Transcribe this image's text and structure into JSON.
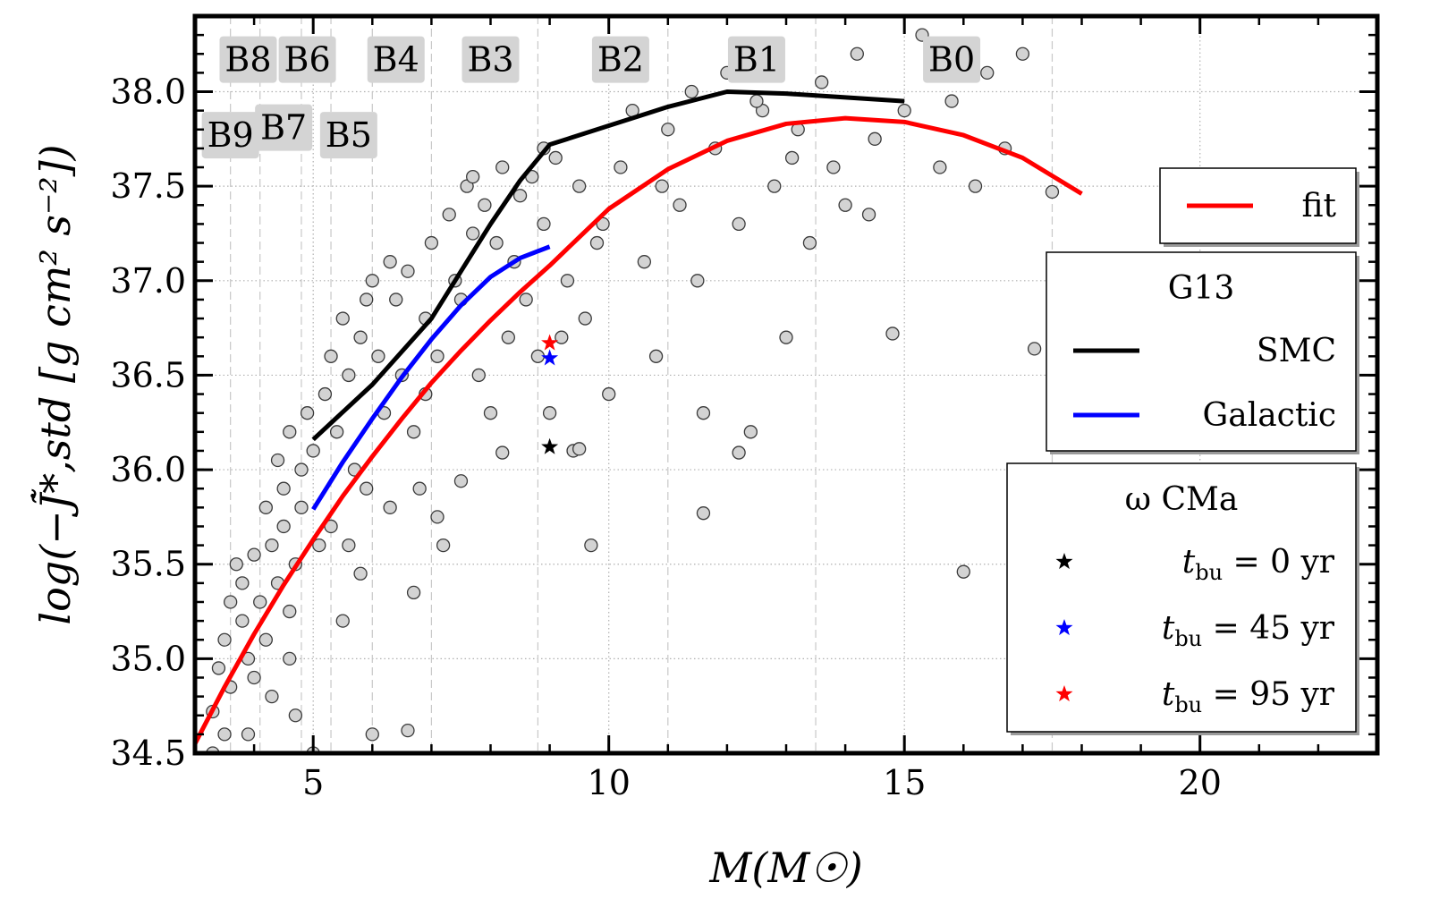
{
  "chart_data": {
    "type": "scatter",
    "title": "",
    "xlabel": "M(M☉)",
    "ylabel": "log(−J̃̇*,std [g cm² s⁻²])",
    "xlim": [
      3.0,
      23.0
    ],
    "ylim": [
      34.5,
      38.4
    ],
    "xticks": [
      5,
      10,
      15,
      20
    ],
    "xtick_labels": [
      "5",
      "10",
      "15",
      "20"
    ],
    "yticks": [
      34.5,
      35.0,
      35.5,
      36.0,
      36.5,
      37.0,
      37.5,
      38.0
    ],
    "ytick_labels": [
      "34.5",
      "35.0",
      "35.5",
      "36.0",
      "36.5",
      "37.0",
      "37.5",
      "38.0"
    ],
    "grid": true,
    "spectral_types": [
      {
        "label": "B9",
        "x": 3.6,
        "y": 37.77
      },
      {
        "label": "B8",
        "x": 3.9,
        "y": 38.17
      },
      {
        "label": "B7",
        "x": 4.5,
        "y": 37.81
      },
      {
        "label": "B6",
        "x": 4.9,
        "y": 38.17
      },
      {
        "label": "B5",
        "x": 5.6,
        "y": 37.77
      },
      {
        "label": "B4",
        "x": 6.4,
        "y": 38.17
      },
      {
        "label": "B3",
        "x": 8.0,
        "y": 38.17
      },
      {
        "label": "B2",
        "x": 10.2,
        "y": 38.17
      },
      {
        "label": "B1",
        "x": 12.5,
        "y": 38.17
      },
      {
        "label": "B0",
        "x": 15.8,
        "y": 38.17
      }
    ],
    "spectral_boundaries": [
      3.6,
      4.1,
      4.8,
      5.3,
      6.0,
      7.0,
      8.8,
      11.0,
      13.5,
      17.5
    ],
    "series": [
      {
        "name": "fit",
        "type": "line",
        "color": "#ff0000",
        "x": [
          3.0,
          3.5,
          4.0,
          4.5,
          5.0,
          5.5,
          6.0,
          6.5,
          7.0,
          7.5,
          8.0,
          8.5,
          9.0,
          9.5,
          10.0,
          11.0,
          12.0,
          13.0,
          14.0,
          15.0,
          16.0,
          17.0,
          18.0
        ],
        "y": [
          34.55,
          34.85,
          35.13,
          35.39,
          35.63,
          35.86,
          36.07,
          36.27,
          36.46,
          36.63,
          36.79,
          36.94,
          37.08,
          37.23,
          37.38,
          37.59,
          37.74,
          37.83,
          37.86,
          37.84,
          37.77,
          37.65,
          37.46
        ]
      },
      {
        "name": "SMC",
        "type": "line",
        "color": "#000000",
        "x": [
          5.0,
          6.0,
          7.0,
          7.5,
          8.0,
          8.5,
          9.0,
          10.0,
          11.0,
          12.0,
          13.0,
          14.0,
          15.0
        ],
        "y": [
          36.16,
          36.45,
          36.8,
          37.05,
          37.3,
          37.53,
          37.72,
          37.82,
          37.92,
          38.0,
          37.99,
          37.97,
          37.95
        ]
      },
      {
        "name": "Galactic",
        "type": "line",
        "color": "#0000ff",
        "x": [
          5.0,
          5.5,
          6.0,
          6.5,
          7.0,
          7.5,
          8.0,
          8.5,
          9.0
        ],
        "y": [
          35.79,
          36.04,
          36.27,
          36.49,
          36.69,
          36.87,
          37.02,
          37.12,
          37.18
        ]
      },
      {
        "name": "t_bu = 0 yr",
        "type": "star",
        "color": "#000000",
        "x": [
          9.0
        ],
        "y": [
          36.12
        ]
      },
      {
        "name": "t_bu = 45 yr",
        "type": "star",
        "color": "#0000ff",
        "x": [
          9.0
        ],
        "y": [
          36.59
        ]
      },
      {
        "name": "t_bu = 95 yr",
        "type": "star",
        "color": "#ff0000",
        "x": [
          9.0
        ],
        "y": [
          36.67
        ]
      }
    ],
    "scatter_points": [
      [
        3.3,
        34.72
      ],
      [
        3.4,
        34.95
      ],
      [
        3.5,
        35.1
      ],
      [
        3.6,
        35.3
      ],
      [
        3.5,
        34.6
      ],
      [
        3.7,
        35.5
      ],
      [
        3.8,
        35.2
      ],
      [
        3.9,
        35.0
      ],
      [
        3.6,
        34.85
      ],
      [
        3.8,
        35.4
      ],
      [
        4.0,
        35.55
      ],
      [
        4.1,
        35.3
      ],
      [
        4.2,
        35.1
      ],
      [
        4.0,
        34.9
      ],
      [
        4.3,
        35.6
      ],
      [
        4.4,
        35.4
      ],
      [
        4.2,
        35.8
      ],
      [
        4.5,
        35.9
      ],
      [
        4.4,
        36.05
      ],
      [
        4.6,
        36.2
      ],
      [
        4.5,
        35.7
      ],
      [
        4.7,
        35.5
      ],
      [
        4.6,
        35.25
      ],
      [
        4.8,
        36.0
      ],
      [
        4.9,
        36.3
      ],
      [
        5.0,
        36.1
      ],
      [
        4.8,
        35.8
      ],
      [
        5.1,
        35.6
      ],
      [
        5.2,
        36.4
      ],
      [
        5.3,
        36.6
      ],
      [
        5.4,
        36.2
      ],
      [
        5.5,
        36.8
      ],
      [
        5.6,
        36.5
      ],
      [
        5.7,
        36.0
      ],
      [
        5.6,
        35.6
      ],
      [
        5.8,
        36.7
      ],
      [
        5.9,
        36.9
      ],
      [
        6.0,
        37.0
      ],
      [
        6.1,
        36.6
      ],
      [
        6.2,
        36.3
      ],
      [
        6.3,
        37.1
      ],
      [
        6.4,
        36.9
      ],
      [
        6.5,
        36.5
      ],
      [
        6.6,
        37.05
      ],
      [
        6.7,
        36.2
      ],
      [
        6.8,
        35.9
      ],
      [
        6.9,
        36.8
      ],
      [
        7.0,
        37.2
      ],
      [
        7.1,
        36.6
      ],
      [
        7.2,
        35.6
      ],
      [
        7.3,
        37.35
      ],
      [
        7.4,
        37.0
      ],
      [
        7.5,
        36.9
      ],
      [
        7.6,
        37.5
      ],
      [
        7.7,
        37.25
      ],
      [
        7.8,
        36.5
      ],
      [
        7.9,
        37.4
      ],
      [
        8.0,
        36.3
      ],
      [
        8.1,
        37.2
      ],
      [
        8.2,
        37.6
      ],
      [
        8.3,
        36.7
      ],
      [
        8.4,
        37.1
      ],
      [
        8.5,
        37.45
      ],
      [
        8.6,
        36.9
      ],
      [
        8.7,
        37.55
      ],
      [
        8.8,
        36.6
      ],
      [
        8.9,
        37.3
      ],
      [
        9.0,
        36.3
      ],
      [
        9.1,
        37.65
      ],
      [
        9.2,
        36.7
      ],
      [
        9.3,
        37.0
      ],
      [
        9.4,
        36.1
      ],
      [
        9.5,
        37.5
      ],
      [
        9.6,
        36.8
      ],
      [
        9.7,
        35.6
      ],
      [
        9.8,
        37.2
      ],
      [
        10.0,
        36.4
      ],
      [
        10.2,
        37.6
      ],
      [
        10.4,
        37.9
      ],
      [
        10.6,
        37.1
      ],
      [
        10.8,
        36.6
      ],
      [
        11.0,
        37.8
      ],
      [
        11.2,
        37.4
      ],
      [
        11.4,
        38.0
      ],
      [
        11.5,
        37.0
      ],
      [
        11.6,
        36.3
      ],
      [
        11.8,
        37.7
      ],
      [
        12.0,
        38.1
      ],
      [
        12.2,
        37.3
      ],
      [
        12.4,
        36.2
      ],
      [
        12.6,
        37.9
      ],
      [
        12.8,
        37.5
      ],
      [
        13.0,
        36.7
      ],
      [
        13.2,
        37.8
      ],
      [
        13.4,
        37.2
      ],
      [
        13.6,
        38.05
      ],
      [
        13.8,
        37.6
      ],
      [
        14.0,
        37.4
      ],
      [
        14.2,
        38.2
      ],
      [
        14.5,
        37.75
      ],
      [
        14.8,
        36.72
      ],
      [
        15.0,
        37.9
      ],
      [
        15.3,
        38.3
      ],
      [
        15.6,
        37.6
      ],
      [
        15.8,
        37.95
      ],
      [
        16.0,
        35.46
      ],
      [
        16.2,
        37.5
      ],
      [
        16.4,
        38.1
      ],
      [
        16.7,
        37.7
      ],
      [
        17.0,
        38.2
      ],
      [
        17.2,
        36.64
      ],
      [
        17.5,
        37.47
      ],
      [
        12.5,
        37.95
      ],
      [
        13.1,
        37.65
      ],
      [
        14.4,
        37.35
      ],
      [
        10.9,
        37.5
      ],
      [
        9.9,
        37.3
      ],
      [
        8.9,
        37.7
      ],
      [
        7.7,
        37.55
      ],
      [
        6.9,
        36.4
      ],
      [
        5.9,
        35.9
      ],
      [
        5.3,
        35.7
      ],
      [
        4.6,
        35.0
      ],
      [
        3.9,
        34.6
      ],
      [
        4.3,
        34.8
      ],
      [
        3.3,
        34.5
      ],
      [
        5.0,
        34.5
      ],
      [
        4.7,
        34.7
      ],
      [
        6.0,
        34.6
      ],
      [
        6.6,
        34.62
      ],
      [
        5.5,
        35.2
      ],
      [
        5.8,
        35.45
      ],
      [
        6.3,
        35.8
      ],
      [
        6.7,
        35.35
      ],
      [
        7.1,
        35.75
      ],
      [
        7.5,
        35.94
      ],
      [
        8.2,
        36.09
      ],
      [
        9.5,
        36.11
      ],
      [
        11.6,
        35.77
      ],
      [
        12.2,
        36.09
      ]
    ],
    "legends": [
      {
        "title": "",
        "entries": [
          {
            "label": "fit",
            "marker": "line",
            "color": "#ff0000"
          }
        ]
      },
      {
        "title": "G13",
        "entries": [
          {
            "label": "SMC",
            "marker": "line",
            "color": "#000000"
          },
          {
            "label": "Galactic",
            "marker": "line",
            "color": "#0000ff"
          }
        ]
      },
      {
        "title": "ω CMa",
        "entries": [
          {
            "label": "t_bu = 0 yr",
            "sub": "bu",
            "value": " = 0 yr",
            "marker": "star",
            "color": "#000000"
          },
          {
            "label": "t_bu = 45 yr",
            "sub": "bu",
            "value": " = 45 yr",
            "marker": "star",
            "color": "#0000ff"
          },
          {
            "label": "t_bu = 95 yr",
            "sub": "bu",
            "value": " = 95 yr",
            "marker": "star",
            "color": "#ff0000"
          }
        ]
      }
    ]
  }
}
